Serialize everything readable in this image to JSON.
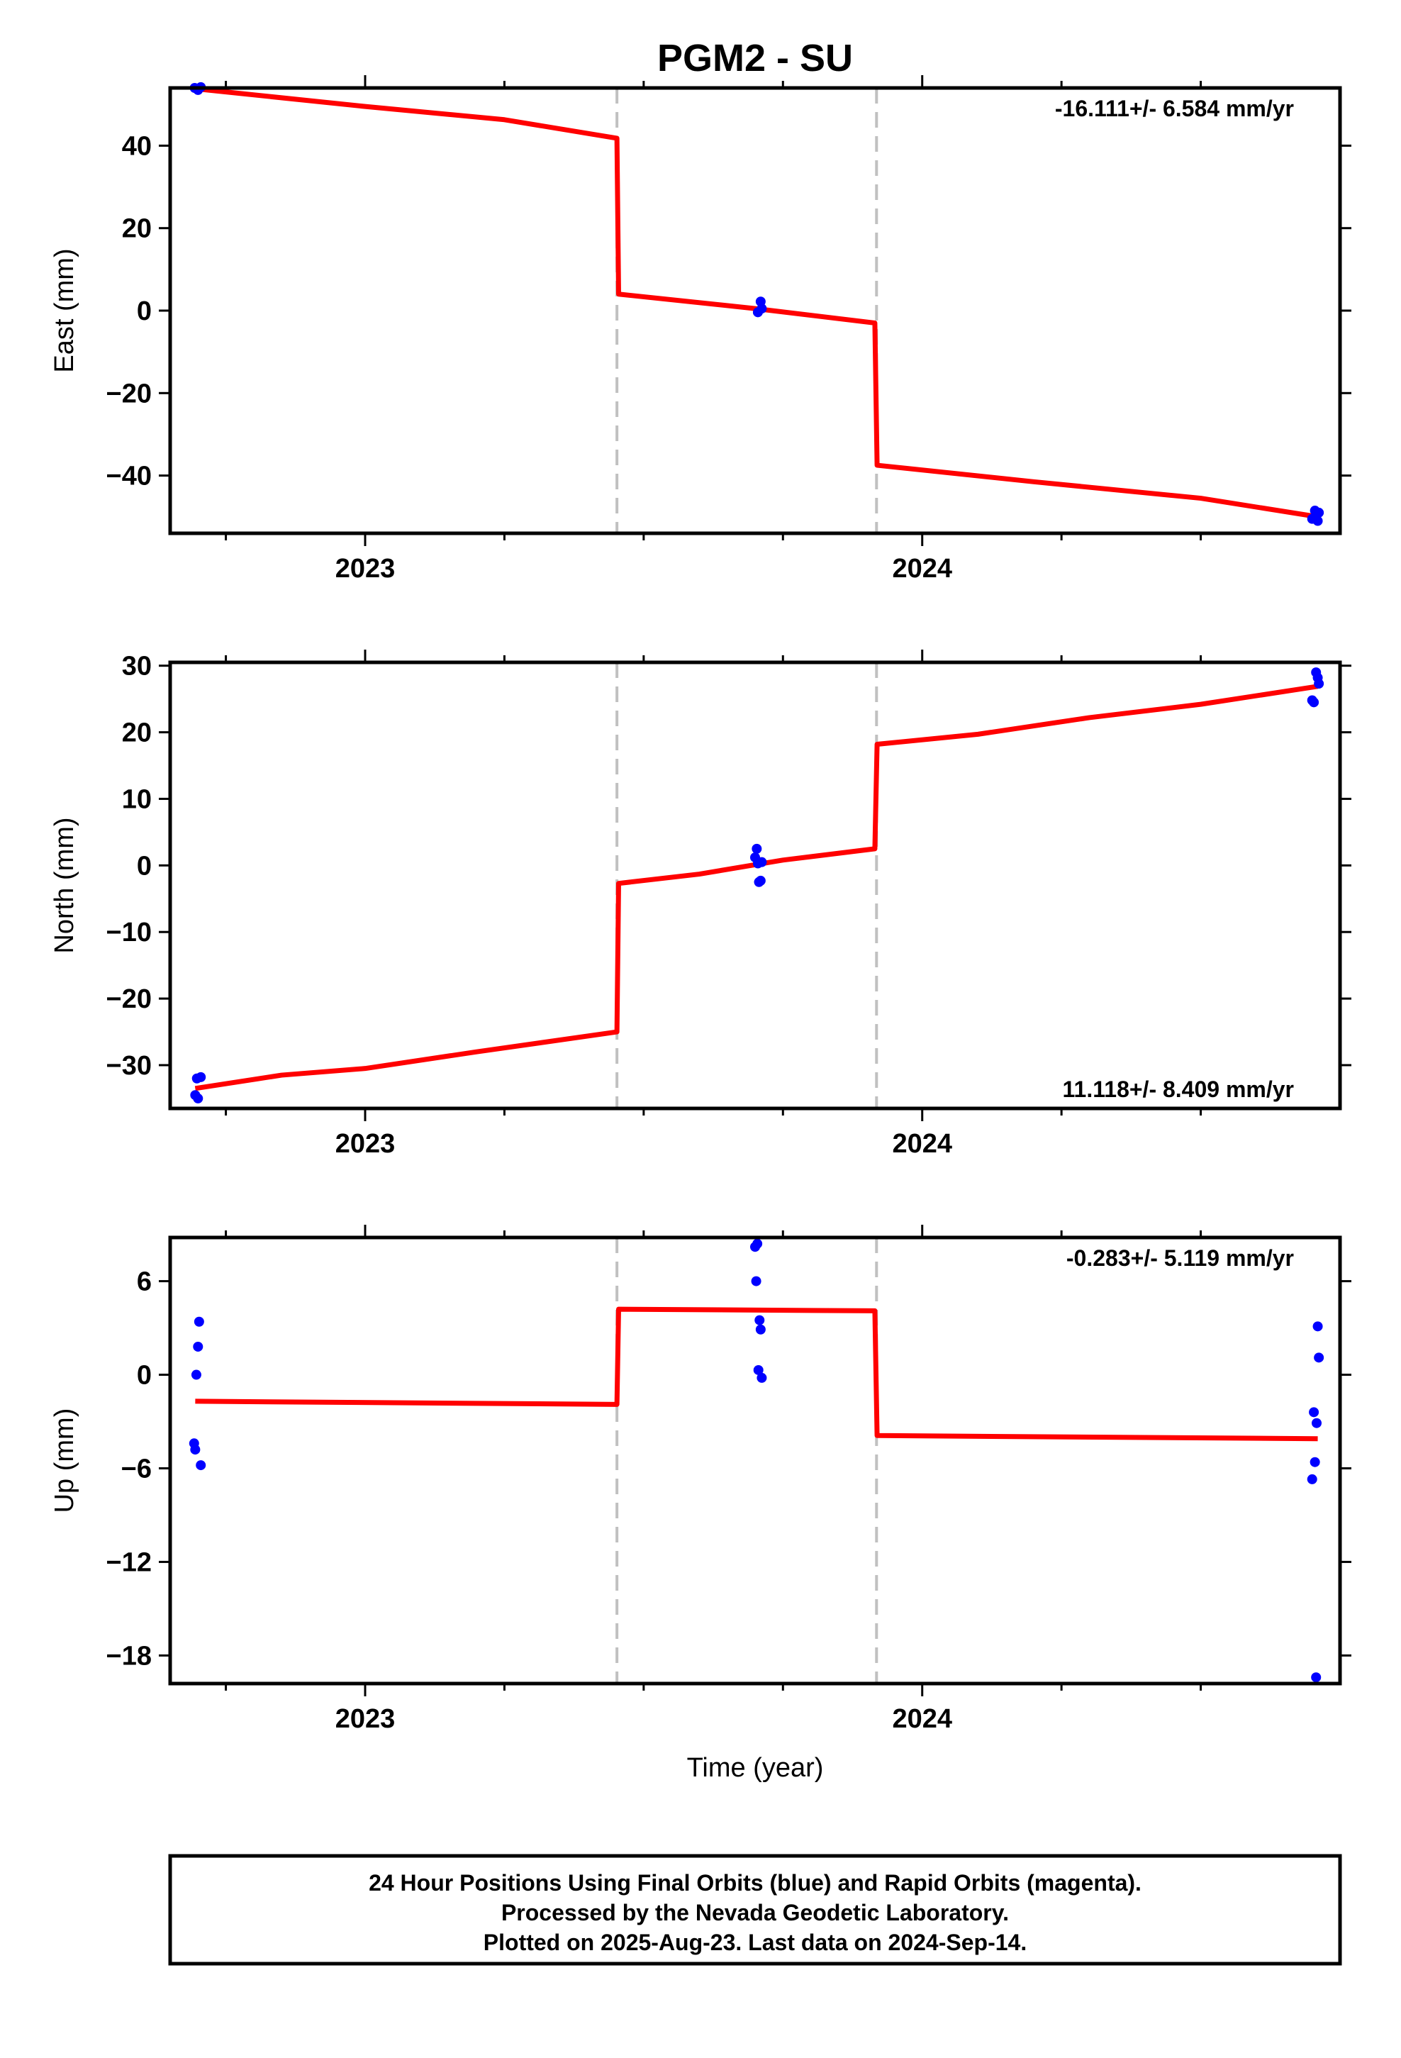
{
  "title": "PGM2 - SU",
  "xlabel": "Time (year)",
  "colors": {
    "fit": "#ff0000",
    "final": "#0000ff",
    "rapid": "#ff00ff",
    "breaks": "#c0c0c0",
    "frame": "#000000"
  },
  "footer": [
    "24 Hour Positions Using Final Orbits (blue) and Rapid Orbits (magenta).",
    "Processed by the Nevada Geodetic Laboratory.",
    "Plotted on 2025-Aug-23. Last data on 2024-Sep-14."
  ],
  "chart_data": [
    {
      "type": "scatter",
      "ylabel": "East (mm)",
      "rate_label": "-16.111+/- 6.584 mm/yr",
      "rate_position": "top-right",
      "xlim": [
        2022.65,
        2024.75
      ],
      "ylim": [
        -54,
        54
      ],
      "yticks": [
        -40,
        -20,
        0,
        20,
        40
      ],
      "xticks_major": [
        2023,
        2024
      ],
      "xticks_minor": [
        2022.75,
        2023.25,
        2023.5,
        2023.75,
        2024.25,
        2024.5
      ],
      "breaks": [
        2023.452,
        2023.918
      ],
      "fit": [
        [
          2022.695,
          53.8
        ],
        [
          2023.0,
          49.5
        ],
        [
          2023.25,
          46.3
        ],
        [
          2023.452,
          41.8
        ],
        [
          2023.455,
          4.0
        ],
        [
          2023.7,
          0.5
        ],
        [
          2023.915,
          -3.0
        ],
        [
          2023.919,
          -37.5
        ],
        [
          2024.2,
          -41.5
        ],
        [
          2024.5,
          -45.5
        ],
        [
          2024.71,
          -50.0
        ]
      ],
      "points": [
        [
          2022.694,
          54.0
        ],
        [
          2022.7,
          53.5
        ],
        [
          2022.705,
          54.2
        ],
        [
          2023.705,
          -0.4
        ],
        [
          2023.71,
          2.2
        ],
        [
          2023.712,
          0.5
        ],
        [
          2024.7,
          -50.5
        ],
        [
          2024.705,
          -48.5
        ],
        [
          2024.71,
          -51.0
        ],
        [
          2024.712,
          -49.0
        ]
      ]
    },
    {
      "type": "scatter",
      "ylabel": "North (mm)",
      "rate_label": "11.118+/- 8.409 mm/yr",
      "rate_position": "bottom-right",
      "xlim": [
        2022.65,
        2024.75
      ],
      "ylim": [
        -36.5,
        30.5
      ],
      "yticks": [
        -30,
        -20,
        -10,
        0,
        10,
        20,
        30
      ],
      "xticks_major": [
        2023,
        2024
      ],
      "xticks_minor": [
        2022.75,
        2023.25,
        2023.5,
        2023.75,
        2024.25,
        2024.5
      ],
      "breaks": [
        2023.452,
        2023.918
      ],
      "fit": [
        [
          2022.695,
          -33.5
        ],
        [
          2022.85,
          -31.5
        ],
        [
          2023.0,
          -30.5
        ],
        [
          2023.2,
          -28.0
        ],
        [
          2023.452,
          -25.0
        ],
        [
          2023.455,
          -2.7
        ],
        [
          2023.6,
          -1.3
        ],
        [
          2023.75,
          0.8
        ],
        [
          2023.915,
          2.5
        ],
        [
          2023.919,
          18.2
        ],
        [
          2024.1,
          19.7
        ],
        [
          2024.3,
          22.2
        ],
        [
          2024.5,
          24.2
        ],
        [
          2024.71,
          26.9
        ]
      ],
      "points": [
        [
          2022.695,
          -34.5
        ],
        [
          2022.698,
          -32.0
        ],
        [
          2022.7,
          -35.0
        ],
        [
          2022.705,
          -31.8
        ],
        [
          2023.7,
          1.2
        ],
        [
          2023.703,
          2.5
        ],
        [
          2023.705,
          0.3
        ],
        [
          2023.707,
          -2.5
        ],
        [
          2023.71,
          -2.3
        ],
        [
          2023.712,
          0.5
        ],
        [
          2024.7,
          24.8
        ],
        [
          2024.703,
          24.5
        ],
        [
          2024.707,
          29.0
        ],
        [
          2024.71,
          28.2
        ],
        [
          2024.712,
          27.3
        ]
      ]
    },
    {
      "type": "scatter",
      "ylabel": "Up (mm)",
      "rate_label": "-0.283+/- 5.119 mm/yr",
      "rate_position": "top-right",
      "xlim": [
        2022.65,
        2024.75
      ],
      "ylim": [
        -19.8,
        8.8
      ],
      "yticks": [
        -18,
        -12,
        -6,
        0,
        6
      ],
      "xticks_major": [
        2023,
        2024
      ],
      "xticks_minor": [
        2022.75,
        2023.25,
        2023.5,
        2023.75,
        2024.25,
        2024.5
      ],
      "breaks": [
        2023.452,
        2023.918
      ],
      "fit": [
        [
          2022.695,
          -1.7
        ],
        [
          2023.452,
          -1.9
        ],
        [
          2023.455,
          4.2
        ],
        [
          2023.915,
          4.1
        ],
        [
          2023.919,
          -3.9
        ],
        [
          2024.71,
          -4.1
        ]
      ],
      "points": [
        [
          2022.693,
          -4.4
        ],
        [
          2022.695,
          -4.8
        ],
        [
          2022.697,
          0.0
        ],
        [
          2022.7,
          1.8
        ],
        [
          2022.702,
          3.4
        ],
        [
          2022.705,
          -5.8
        ],
        [
          2023.7,
          8.2
        ],
        [
          2023.702,
          6.0
        ],
        [
          2023.704,
          8.4
        ],
        [
          2023.706,
          0.3
        ],
        [
          2023.708,
          3.5
        ],
        [
          2023.71,
          2.9
        ],
        [
          2023.712,
          -0.2
        ],
        [
          2024.7,
          -6.7
        ],
        [
          2024.703,
          -2.4
        ],
        [
          2024.705,
          -5.6
        ],
        [
          2024.707,
          -19.4
        ],
        [
          2024.708,
          -3.1
        ],
        [
          2024.71,
          3.1
        ],
        [
          2024.712,
          1.1
        ]
      ]
    }
  ]
}
